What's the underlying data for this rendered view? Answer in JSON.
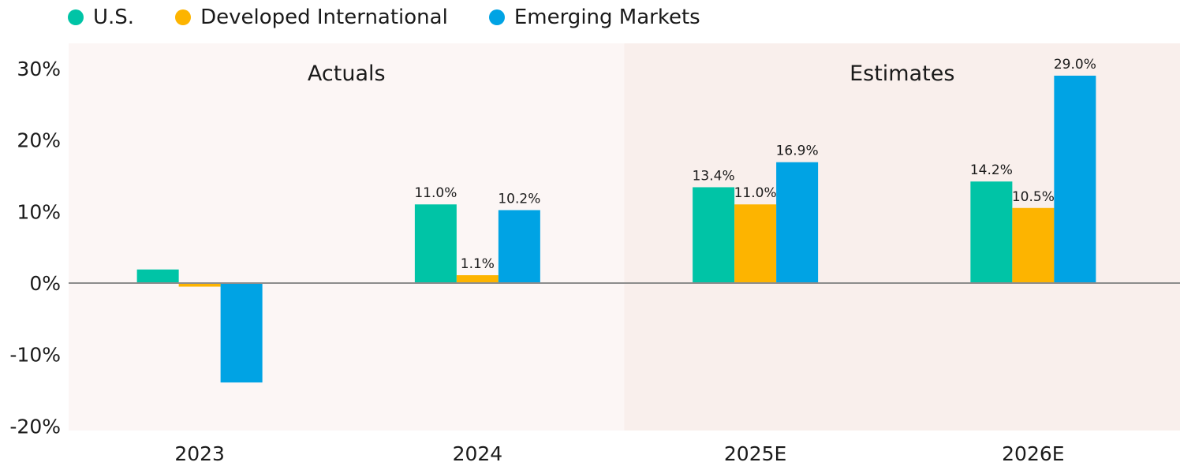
{
  "chart_data": {
    "type": "bar",
    "title": "",
    "xlabel": "",
    "ylabel": "",
    "ylim": [
      -20,
      30
    ],
    "yticks": [
      30,
      20,
      10,
      0,
      -10,
      -20
    ],
    "ytick_labels": [
      "30%",
      "20%",
      "10%",
      "0%",
      "-10%",
      "-20%"
    ],
    "categories": [
      "2023",
      "2024",
      "2025E",
      "2026E"
    ],
    "series": [
      {
        "name": "U.S.",
        "color": "#00c4a6",
        "values": [
          1.9,
          11.0,
          13.4,
          14.2
        ],
        "labels": [
          "",
          "11.0%",
          "13.4%",
          "14.2%"
        ]
      },
      {
        "name": "Developed International",
        "color": "#fdb400",
        "values": [
          -0.5,
          1.1,
          11.0,
          10.5
        ],
        "labels": [
          "",
          "1.1%",
          "11.0%",
          "10.5%"
        ]
      },
      {
        "name": "Emerging Markets",
        "color": "#00a3e4",
        "values": [
          -13.9,
          10.2,
          16.9,
          29.0
        ],
        "labels": [
          "",
          "10.2%",
          "16.9%",
          "29.0%"
        ]
      }
    ],
    "panels": [
      {
        "label": "Actuals",
        "categories": [
          "2023",
          "2024"
        ],
        "background": "#fcf6f5"
      },
      {
        "label": "Estimates",
        "categories": [
          "2025E",
          "2026E"
        ],
        "background": "#f9efec"
      }
    ],
    "legend_position": "top-left",
    "grid": false,
    "zero_line_color": "#8c8c8c"
  }
}
